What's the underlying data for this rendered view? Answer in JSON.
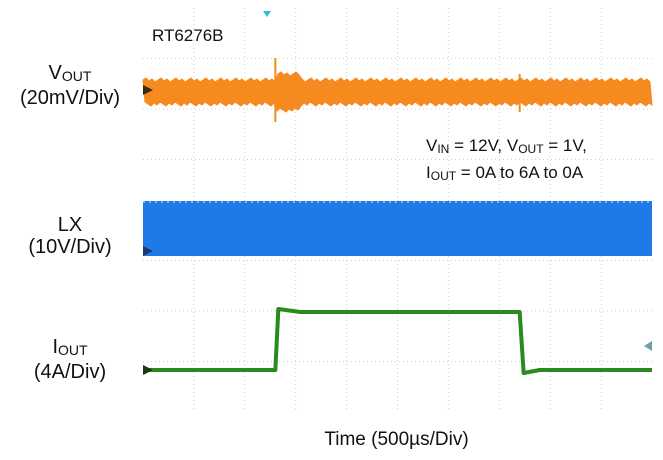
{
  "chart_data": {
    "type": "line",
    "part_number": "RT6276B",
    "xlabel": "Time (500µs/Div)",
    "x_divisions": 10,
    "y_divisions": 8,
    "grid": true,
    "conditions": [
      "V",
      "IN",
      " = 12V, ",
      "V",
      "OUT",
      " = 1V,",
      "I",
      "OUT",
      " = 0A to 6A to 0A"
    ],
    "series": [
      {
        "name": "VOUT",
        "label_main": "V",
        "label_sub": "OUT",
        "scale": "(20mV/Div)",
        "color": "#f58a1f",
        "description_points": {
          "load_step_up_div": 2.6,
          "load_step_down_div": 7.4
        }
      },
      {
        "name": "LX",
        "label_main": "LX",
        "label_sub": "",
        "scale": "(10V/Div)",
        "color": "#1e7ae8"
      },
      {
        "name": "IOUT",
        "label_main": "I",
        "label_sub": "OUT",
        "scale": "(4A/Div)",
        "color": "#2a8a1e",
        "low_A": 0,
        "high_A": 6,
        "rise_div": 2.6,
        "fall_div": 7.4
      }
    ]
  }
}
